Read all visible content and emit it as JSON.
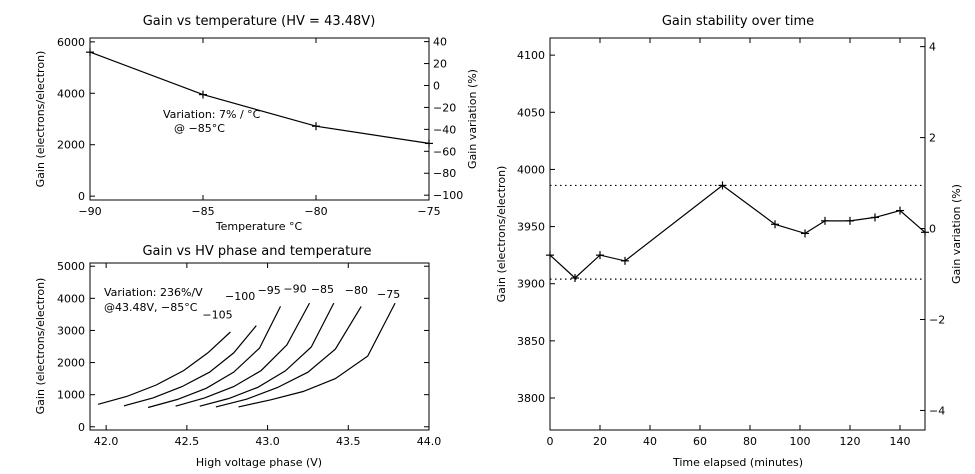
{
  "chart_data": [
    {
      "type": "line",
      "title": "Gain vs temperature (HV = 43.48V)",
      "xlabel": "Temperature °C",
      "ylabel": "Gain (electrons/electron)",
      "y2label": "Gain variation (%)",
      "xlim": [
        -90,
        -75
      ],
      "ylim": [
        -150,
        6150
      ],
      "y2lim": [
        -104.4,
        43.3
      ],
      "xticks": [
        "−90",
        "−85",
        "−80",
        "−75"
      ],
      "xtick_values": [
        -90,
        -85,
        -80,
        -75
      ],
      "yticks": [
        "0",
        "2000",
        "4000",
        "6000"
      ],
      "ytick_values": [
        0,
        2000,
        4000,
        6000
      ],
      "y2ticks": [
        "40",
        "20",
        "0",
        "−20",
        "−40",
        "−60",
        "−80",
        "−100"
      ],
      "y2tick_values": [
        40,
        20,
        0,
        -20,
        -40,
        -60,
        -80,
        -100
      ],
      "series": [
        {
          "x": [
            -90,
            -85,
            -80,
            -75
          ],
          "values": [
            5600,
            3950,
            2720,
            2050
          ]
        }
      ],
      "annotations": [
        "Variation: 7% / °C",
        "@ −85°C"
      ],
      "grid": false
    },
    {
      "type": "line",
      "title": "Gain vs HV phase and temperature",
      "xlabel": "High voltage phase (V)",
      "ylabel": "Gain (electrons/electron)",
      "xlim": [
        41.9,
        44.0
      ],
      "ylim": [
        -100,
        5100
      ],
      "xticks": [
        "42.0",
        "42.5",
        "43.0",
        "43.5",
        "44.0"
      ],
      "xtick_values": [
        42.0,
        42.5,
        43.0,
        43.5,
        44.0
      ],
      "yticks": [
        "0",
        "1000",
        "2000",
        "3000",
        "4000",
        "5000"
      ],
      "ytick_values": [
        0,
        1000,
        2000,
        3000,
        4000,
        5000
      ],
      "series": [
        {
          "name": "−105",
          "x": [
            41.95,
            42.13,
            42.31,
            42.48,
            42.63,
            42.77
          ],
          "values": [
            700,
            950,
            1300,
            1750,
            2300,
            2950
          ]
        },
        {
          "name": "−100",
          "x": [
            42.11,
            42.29,
            42.47,
            42.64,
            42.79,
            42.93
          ],
          "values": [
            650,
            900,
            1250,
            1700,
            2300,
            3150
          ]
        },
        {
          "name": "−95",
          "x": [
            42.26,
            42.44,
            42.62,
            42.79,
            42.95,
            43.08
          ],
          "values": [
            600,
            850,
            1200,
            1700,
            2450,
            3750
          ]
        },
        {
          "name": "−90",
          "x": [
            42.43,
            42.61,
            42.79,
            42.96,
            43.12,
            43.26
          ],
          "values": [
            640,
            900,
            1250,
            1750,
            2550,
            3850
          ]
        },
        {
          "name": "−85",
          "x": [
            42.58,
            42.76,
            42.94,
            43.11,
            43.27,
            43.41
          ],
          "values": [
            640,
            880,
            1230,
            1740,
            2480,
            3850
          ]
        },
        {
          "name": "−80",
          "x": [
            42.68,
            42.87,
            43.06,
            43.25,
            43.42,
            43.58
          ],
          "values": [
            620,
            860,
            1220,
            1700,
            2420,
            3750
          ]
        },
        {
          "name": "−75",
          "x": [
            42.82,
            43.02,
            43.22,
            43.42,
            43.62,
            43.79
          ],
          "values": [
            620,
            840,
            1100,
            1500,
            2200,
            3850
          ]
        }
      ],
      "series_label_positions": [
        [
          42.69,
          3370
        ],
        [
          42.83,
          3950
        ],
        [
          43.01,
          4130
        ],
        [
          43.17,
          4180
        ],
        [
          43.34,
          4170
        ],
        [
          43.55,
          4130
        ],
        [
          43.75,
          4010
        ]
      ],
      "annotations": [
        "Variation: 236%/V",
        "@43.48V, −85°C"
      ],
      "grid": false
    },
    {
      "type": "line",
      "title": "Gain stability over time",
      "xlabel": "Time elapsed (minutes)",
      "ylabel": "Gain (electrons/electron)",
      "y2label": "Gain variation (%)",
      "xlim": [
        0,
        150
      ],
      "ylim": [
        3772,
        4115
      ],
      "y2lim": [
        -4.43,
        4.19
      ],
      "xticks": [
        "0",
        "20",
        "40",
        "60",
        "80",
        "100",
        "120",
        "140"
      ],
      "xtick_values": [
        0,
        20,
        40,
        60,
        80,
        100,
        120,
        140
      ],
      "yticks": [
        "3800",
        "3850",
        "3900",
        "3950",
        "4000",
        "4050",
        "4100"
      ],
      "ytick_values": [
        3800,
        3850,
        3900,
        3950,
        4000,
        4050,
        4100
      ],
      "y2ticks": [
        "4",
        "2",
        "0",
        "−2",
        "−4"
      ],
      "y2tick_values": [
        4,
        2,
        0,
        -2,
        -4
      ],
      "series": [
        {
          "x": [
            0,
            10,
            20,
            30,
            69,
            90,
            102,
            110,
            120,
            130,
            140,
            150
          ],
          "values": [
            3925,
            3905,
            3925,
            3920,
            3986,
            3952,
            3944,
            3955,
            3955,
            3958,
            3964,
            3945
          ]
        }
      ],
      "reference_lines": [
        3986,
        3904
      ],
      "grid": false
    }
  ]
}
